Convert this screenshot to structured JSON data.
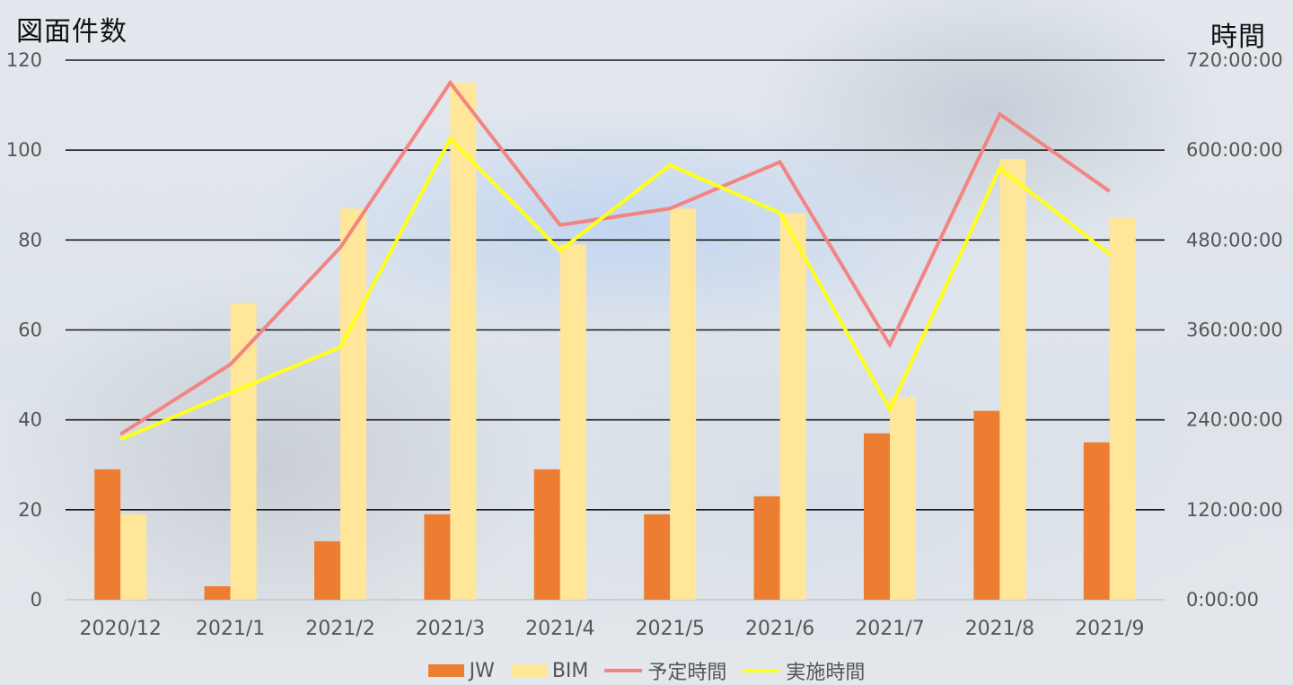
{
  "titles": {
    "left_axis": "図面件数",
    "right_axis": "時間"
  },
  "chart_data": {
    "type": "bar",
    "categories": [
      "2020/12",
      "2021/1",
      "2021/2",
      "2021/3",
      "2021/4",
      "2021/5",
      "2021/6",
      "2021/7",
      "2021/8",
      "2021/9"
    ],
    "series": [
      {
        "name": "JW",
        "kind": "bar",
        "axis": "left",
        "color": "#ed7d31",
        "values": [
          29,
          3,
          13,
          19,
          29,
          19,
          23,
          37,
          42,
          35
        ]
      },
      {
        "name": "BIM",
        "kind": "bar",
        "axis": "left",
        "color": "#ffe699",
        "values": [
          19,
          66,
          87,
          115,
          79,
          87,
          86,
          45,
          98,
          85
        ]
      },
      {
        "name": "予定時間",
        "kind": "line",
        "axis": "right",
        "color": "#f28482",
        "values_hours": [
          221,
          314,
          470,
          690,
          500,
          522,
          584,
          340,
          648,
          545
        ]
      },
      {
        "name": "実施時間",
        "kind": "line",
        "axis": "right",
        "color": "#ffff1a",
        "values_hours": [
          214,
          276,
          337,
          615,
          466,
          580,
          516,
          254,
          576,
          461
        ]
      }
    ],
    "y_left": {
      "min": 0,
      "max": 120,
      "ticks": [
        "0",
        "20",
        "40",
        "60",
        "80",
        "100",
        "120"
      ]
    },
    "y_right": {
      "min_hours": 0,
      "max_hours": 720,
      "ticks": [
        "0:00:00",
        "120:00:00",
        "240:00:00",
        "360:00:00",
        "480:00:00",
        "600:00:00",
        "720:00:00"
      ]
    },
    "grid": true,
    "legend_position": "bottom"
  }
}
